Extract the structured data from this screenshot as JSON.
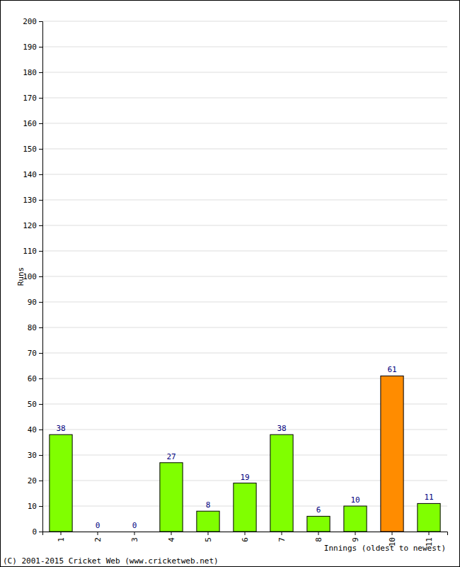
{
  "chart_data": {
    "type": "bar",
    "x_label": "Innings (oldest to newest)",
    "y_label": "Runs",
    "annotations": [
      "(C) 2001-2015 Cricket Web (www.cricketweb.net)"
    ],
    "categories": [
      "1",
      "2",
      "3",
      "4",
      "5",
      "6",
      "7",
      "8",
      "9",
      "10",
      "11"
    ],
    "values": [
      38,
      0,
      0,
      27,
      8,
      19,
      38,
      6,
      10,
      61,
      11
    ],
    "colors": [
      "#80ff00",
      "#80ff00",
      "#80ff00",
      "#80ff00",
      "#80ff00",
      "#80ff00",
      "#80ff00",
      "#80ff00",
      "#80ff00",
      "#ff8c00",
      "#80ff00"
    ],
    "ylim": [
      0,
      200
    ],
    "yticks": [
      0,
      10,
      20,
      30,
      40,
      50,
      60,
      70,
      80,
      90,
      100,
      110,
      120,
      130,
      140,
      150,
      160,
      170,
      180,
      190,
      200
    ],
    "grid": true,
    "data_labels": true
  }
}
